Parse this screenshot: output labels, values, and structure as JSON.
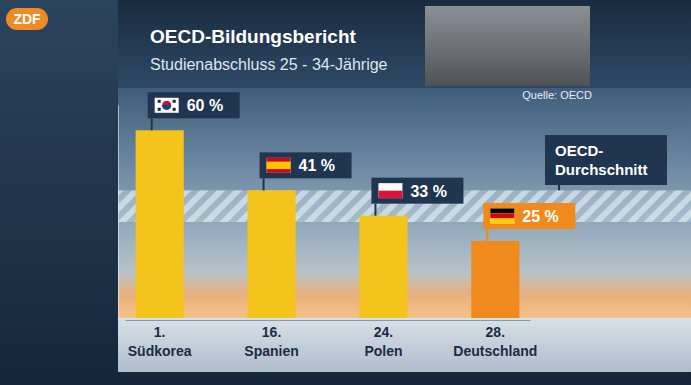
{
  "chart_data": {
    "type": "bar",
    "logo": "ZDF",
    "title": "OECD-Bildungsbericht",
    "subtitle": "Studienabschluss 25 - 34-Jährige",
    "source": "Quelle: OECD",
    "categories": [
      "Südkorea",
      "Spanien",
      "Polen",
      "Deutschland"
    ],
    "ranks": [
      "1.",
      "16.",
      "24.",
      "28."
    ],
    "values": [
      60,
      41,
      33,
      25
    ],
    "value_labels": [
      "60 %",
      "41 %",
      "33 %",
      "25 %"
    ],
    "colors": [
      "#f5c41c",
      "#f5c41c",
      "#f5c41c",
      "#f08a1c"
    ],
    "data_labels": true,
    "ylim": [
      0,
      68
    ],
    "yticks": [],
    "tick_labels": "x",
    "grid": false,
    "bands": [
      {
        "label": "OECD-Durchschnitt",
        "from": 31,
        "to": 41
      }
    ]
  }
}
